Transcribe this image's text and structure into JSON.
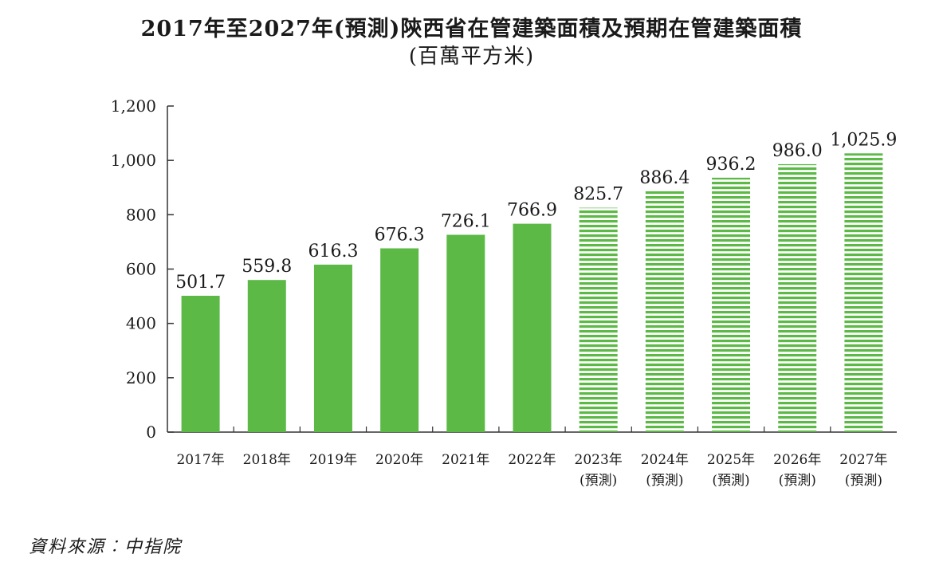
{
  "title_line1": "2017年至2027年(預測)陝西省在管建築面積及預期在管建築面積",
  "title_line2": "(百萬平方米)",
  "source": "資料來源︰中指院",
  "colors": {
    "bar": "#5cb946",
    "forecast_stripe": "#5cb946"
  },
  "chart_data": {
    "type": "bar",
    "title": "2017年至2027年(預測)陝西省在管建築面積及預期在管建築面積",
    "subtitle": "(百萬平方米)",
    "categories": [
      "2017年",
      "2018年",
      "2019年",
      "2020年",
      "2021年",
      "2022年",
      "2023年",
      "2024年",
      "2025年",
      "2026年",
      "2027年"
    ],
    "category_sublabels": [
      "",
      "",
      "",
      "",
      "",
      "",
      "(預測)",
      "(預測)",
      "(預測)",
      "(預測)",
      "(預測)"
    ],
    "values": [
      501.7,
      559.8,
      616.3,
      676.3,
      726.1,
      766.9,
      825.7,
      886.4,
      936.2,
      986.0,
      1025.9
    ],
    "value_labels": [
      "501.7",
      "559.8",
      "616.3",
      "676.3",
      "726.1",
      "766.9",
      "825.7",
      "886.4",
      "936.2",
      "986.0",
      "1,025.9"
    ],
    "forecast": [
      false,
      false,
      false,
      false,
      false,
      false,
      true,
      true,
      true,
      true,
      true
    ],
    "ylim": [
      0,
      1200
    ],
    "yticks": [
      0,
      200,
      400,
      600,
      800,
      1000,
      1200
    ],
    "ytick_labels": [
      "0",
      "200",
      "400",
      "600",
      "800",
      "1,000",
      "1,200"
    ],
    "xlabel": "",
    "ylabel": "",
    "grid": false
  }
}
